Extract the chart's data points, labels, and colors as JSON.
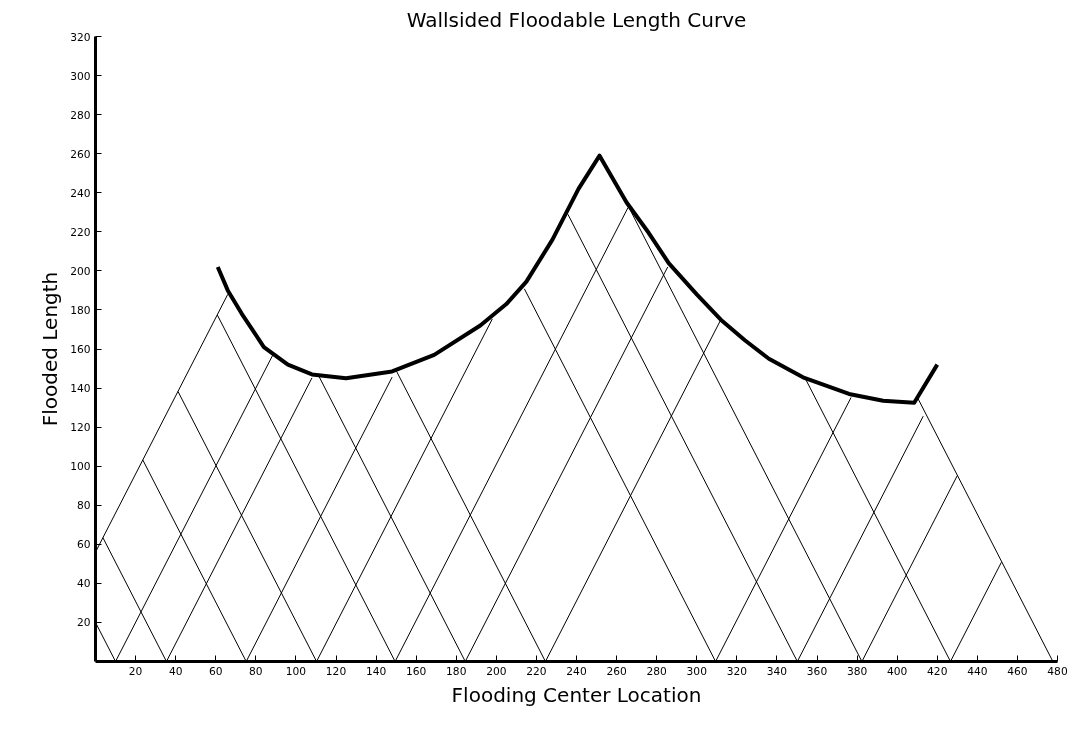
{
  "chart_data": {
    "type": "line",
    "title": "Wallsided Floodable Length Curve",
    "xlabel": "Flooding Center Location",
    "ylabel": "Flooded Length",
    "xlim": [
      0,
      480
    ],
    "ylim": [
      0,
      320
    ],
    "xticks": [
      20,
      40,
      60,
      80,
      100,
      120,
      140,
      160,
      180,
      200,
      220,
      240,
      260,
      280,
      300,
      320,
      340,
      360,
      380,
      400,
      420,
      440,
      460,
      480
    ],
    "yticks": [
      20,
      40,
      60,
      80,
      100,
      120,
      140,
      160,
      180,
      200,
      220,
      240,
      260,
      280,
      300,
      320
    ],
    "grid": false,
    "marker": "none",
    "line_style": "solid",
    "series": [
      {
        "color": "#000000",
        "x": [
          61,
          66,
          73,
          84,
          96,
          108,
          125,
          148,
          169,
          192,
          205,
          215,
          228,
          241,
          251.5,
          265,
          276,
          286,
          300,
          312,
          324,
          336,
          353,
          376,
          393,
          408.5,
          420
        ],
        "values": [
          202,
          190,
          178,
          161,
          152,
          147,
          145,
          148.5,
          157,
          172,
          183,
          194.5,
          216,
          242,
          259,
          235,
          219.5,
          204,
          188,
          175,
          164.5,
          155,
          145.5,
          137,
          133.5,
          132.5,
          152
        ]
      },
      {
        "color": "#000000",
        "x": [
          0,
          66
        ],
        "values": [
          56,
          188
        ]
      },
      {
        "color": "#000000",
        "x": [
          10,
          89
        ],
        "values": [
          0,
          158
        ]
      },
      {
        "color": "#000000",
        "x": [
          35.4,
          108
        ],
        "values": [
          0,
          145.2
        ]
      },
      {
        "color": "#000000",
        "x": [
          75.2,
          148
        ],
        "values": [
          0,
          145.6
        ]
      },
      {
        "color": "#000000",
        "x": [
          110.3,
          198
        ],
        "values": [
          0,
          175.4
        ]
      },
      {
        "color": "#000000",
        "x": [
          149.5,
          265.7
        ],
        "values": [
          0,
          232.4
        ]
      },
      {
        "color": "#000000",
        "x": [
          184.5,
          285.5
        ],
        "values": [
          0,
          202
        ]
      },
      {
        "color": "#000000",
        "x": [
          224.5,
          312
        ],
        "values": [
          0,
          175
        ]
      },
      {
        "color": "#000000",
        "x": [
          309.4,
          377
        ],
        "values": [
          0,
          135.2
        ]
      },
      {
        "color": "#000000",
        "x": [
          350.2,
          413
        ],
        "values": [
          0,
          125.6
        ]
      },
      {
        "color": "#000000",
        "x": [
          382.4,
          430
        ],
        "values": [
          0,
          95.2
        ]
      },
      {
        "color": "#000000",
        "x": [
          426.6,
          452
        ],
        "values": [
          0,
          50.8
        ]
      },
      {
        "color": "#000000",
        "x": [
          0,
          10
        ],
        "values": [
          20,
          0
        ]
      },
      {
        "color": "#000000",
        "x": [
          3.7,
          35.4
        ],
        "values": [
          63.4,
          0
        ]
      },
      {
        "color": "#000000",
        "x": [
          23.6,
          75.2
        ],
        "values": [
          103.2,
          0
        ]
      },
      {
        "color": "#000000",
        "x": [
          41.2,
          110.3
        ],
        "values": [
          138.2,
          0
        ]
      },
      {
        "color": "#000000",
        "x": [
          60.8,
          149.5
        ],
        "values": [
          177.4,
          0
        ]
      },
      {
        "color": "#000000",
        "x": [
          111.5,
          184.5
        ],
        "values": [
          146,
          0
        ]
      },
      {
        "color": "#000000",
        "x": [
          150,
          224.5
        ],
        "values": [
          149,
          0
        ]
      },
      {
        "color": "#000000",
        "x": [
          214,
          309.4
        ],
        "values": [
          190.8,
          0
        ]
      },
      {
        "color": "#000000",
        "x": [
          235.7,
          350.2
        ],
        "values": [
          229,
          0
        ]
      },
      {
        "color": "#000000",
        "x": [
          265.7,
          382.4
        ],
        "values": [
          233.4,
          0
        ]
      },
      {
        "color": "#000000",
        "x": [
          354,
          426.6
        ],
        "values": [
          145.2,
          0
        ]
      },
      {
        "color": "#000000",
        "x": [
          410,
          477.7
        ],
        "values": [
          135.4,
          0
        ]
      }
    ]
  }
}
